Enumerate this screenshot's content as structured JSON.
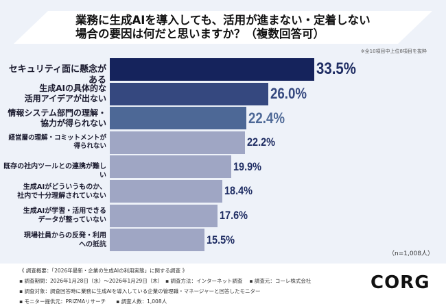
{
  "chart_data": {
    "type": "bar",
    "orientation": "horizontal",
    "title": "業務に生成AIを導入しても、活用が進まない・定着しない場合の要因は何だと思いますか？（複数回答可）",
    "title_lines": [
      "業務に生成AIを導入しても、活用が進まない・定着しない",
      "場合の要因は何だと思いますか？（複数回答可）"
    ],
    "note": "※全10項目中上位8項目を抜粋",
    "categories": [
      "セキュリティ面に懸念がある",
      "生成AIの具体的な\n活用アイデアが出ない",
      "情報システム部門の理解・\n協力が得られない",
      "経営層の理解・コミットメントが\n得られない",
      "既存の社内ツールとの連携が難しい",
      "生成AIがどういうものか、\n社内で十分理解されていない",
      "生成AIが学習・活用できる\nデータが整っていない",
      "現場社員からの反発・利用\nへの抵抗"
    ],
    "values": [
      33.5,
      26.0,
      22.4,
      22.2,
      19.9,
      18.4,
      17.6,
      15.5
    ],
    "value_labels": [
      "33.5%",
      "26.0%",
      "22.4%",
      "22.2%",
      "19.9%",
      "18.4%",
      "17.6%",
      "15.5%"
    ],
    "bar_colors": [
      "#15235c",
      "#35487f",
      "#4d6896",
      "#9fa6c4",
      "#9fa6c4",
      "#9fa6c4",
      "#9fa6c4",
      "#9fa6c4"
    ],
    "label_colors": [
      "#1f2d63",
      "#35487f",
      "#4d6896",
      "#1f2d63",
      "#1f2d63",
      "#1f2d63",
      "#1f2d63",
      "#1f2d63"
    ],
    "unit": "%",
    "sample": "（n=1,008人）",
    "grid": false
  },
  "footer": {
    "lines": [
      "《 調査概要：「2026年最新・企業の生成AIの利用実態」に関する調査 》",
      "▪ 調査期間：2026年1月28日（水）～2026年1月29日（木）　▪ 調査方法：インターネット調査　 ▪ 調査元：コーレ株式会社",
      "▪ 調査対象：調査回答時に業務に生成AIを導入している企業の管理職・マネージャーと回答したモニター",
      "▪ モニター提供元：PRIZMAリサーチ　　▪ 調査人数：1,008人"
    ],
    "logo": "CORE"
  }
}
